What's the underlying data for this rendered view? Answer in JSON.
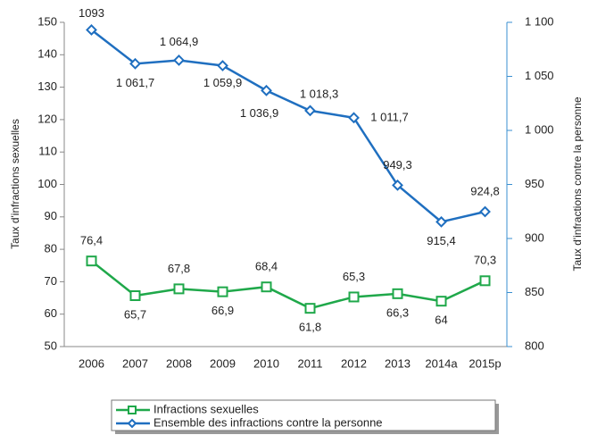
{
  "chart_data": {
    "type": "line",
    "categories": [
      "2006",
      "2007",
      "2008",
      "2009",
      "2010",
      "2011",
      "2012",
      "2013",
      "2014a",
      "2015p"
    ],
    "series": [
      {
        "name": "Infractions sexuelles",
        "color": "#1fa84a",
        "marker": "square",
        "values": [
          76.4,
          65.7,
          67.8,
          66.9,
          68.4,
          61.8,
          65.3,
          66.3,
          64,
          70.3
        ],
        "value_labels": [
          "76,4",
          "65,7",
          "67,8",
          "66,9",
          "68,4",
          "61,8",
          "65,3",
          "66,3",
          "64",
          "70,3"
        ]
      },
      {
        "name": "Ensemble des infractions contre la personne",
        "color": "#1f6fc0",
        "marker": "diamond",
        "axis": "y2",
        "values": [
          1093,
          1061.7,
          1064.9,
          1059.9,
          1036.9,
          1018.3,
          1011.7,
          949.3,
          915.4,
          924.8
        ],
        "value_labels": [
          "1093",
          "1 061,7",
          "1 064,9",
          "1 059,9",
          "1 036,9",
          "1 018,3",
          "1 011,7",
          "949,3",
          "915,4",
          "924,8"
        ]
      }
    ],
    "ylabel": "Taux d'infractions sexuelles",
    "y2label": "Taux d'infractions contre la personne",
    "ylim": [
      50,
      150
    ],
    "yticks": [
      50,
      60,
      70,
      80,
      90,
      100,
      110,
      120,
      130,
      140,
      150
    ],
    "y2lim": [
      800,
      1100
    ],
    "y2ticks": [
      800,
      850,
      900,
      950,
      {
        "value": 1000,
        "label": "1 000"
      },
      {
        "value": 1050,
        "label": "1 050"
      },
      {
        "value": 1100,
        "label": "1 100"
      }
    ],
    "legend": "bottom"
  }
}
